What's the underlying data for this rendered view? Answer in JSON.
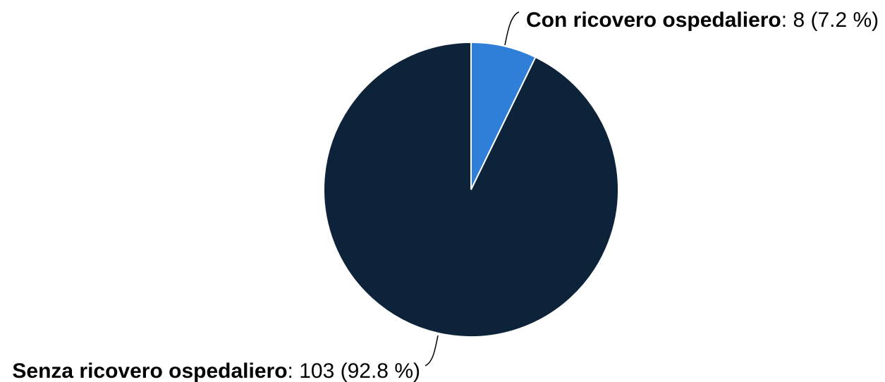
{
  "chart_data": {
    "type": "pie",
    "slices": [
      {
        "name": "Con ricovero ospedaliero",
        "value": 8,
        "value_text": "8",
        "percent": 7.2,
        "percent_text": "(7.2 %)",
        "color": "#2f7ed8"
      },
      {
        "name": "Senza ricovero ospedaliero",
        "value": 103,
        "value_text": "103",
        "percent": 92.8,
        "percent_text": "(92.8 %)",
        "color": "#0d233a"
      }
    ],
    "start_angle": "top",
    "direction": "clockwise",
    "legend": "none"
  }
}
